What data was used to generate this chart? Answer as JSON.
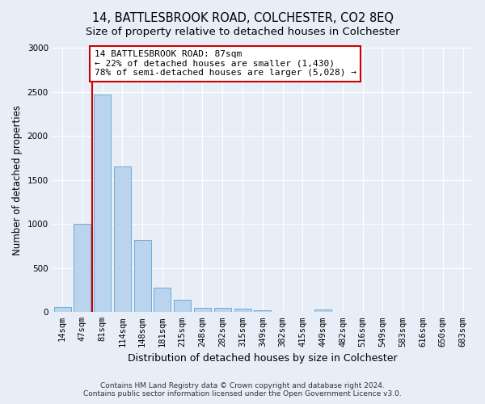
{
  "title": "14, BATTLESBROOK ROAD, COLCHESTER, CO2 8EQ",
  "subtitle": "Size of property relative to detached houses in Colchester",
  "xlabel": "Distribution of detached houses by size in Colchester",
  "ylabel": "Number of detached properties",
  "bar_labels": [
    "14sqm",
    "47sqm",
    "81sqm",
    "114sqm",
    "148sqm",
    "181sqm",
    "215sqm",
    "248sqm",
    "282sqm",
    "315sqm",
    "349sqm",
    "382sqm",
    "415sqm",
    "449sqm",
    "482sqm",
    "516sqm",
    "549sqm",
    "583sqm",
    "616sqm",
    "650sqm",
    "683sqm"
  ],
  "bar_values": [
    60,
    1000,
    2470,
    1650,
    820,
    275,
    140,
    50,
    50,
    40,
    25,
    0,
    0,
    30,
    0,
    0,
    0,
    0,
    0,
    0,
    0
  ],
  "bar_color": "#bad4ed",
  "bar_edge_color": "#6aaed6",
  "vline_color": "#cc0000",
  "annotation_line1": "14 BATTLESBROOK ROAD: 87sqm",
  "annotation_line2": "← 22% of detached houses are smaller (1,430)",
  "annotation_line3": "78% of semi-detached houses are larger (5,028) →",
  "annotation_box_color": "white",
  "annotation_box_edge_color": "#cc0000",
  "ylim": [
    0,
    3000
  ],
  "yticks": [
    0,
    500,
    1000,
    1500,
    2000,
    2500,
    3000
  ],
  "footer": "Contains HM Land Registry data © Crown copyright and database right 2024.\nContains public sector information licensed under the Open Government Licence v3.0.",
  "background_color": "#e8eef7",
  "plot_bg_color": "#e8eef7",
  "title_fontsize": 10.5,
  "subtitle_fontsize": 9.5,
  "xlabel_fontsize": 9,
  "ylabel_fontsize": 8.5,
  "tick_fontsize": 7.5,
  "annotation_fontsize": 8,
  "footer_fontsize": 6.5
}
